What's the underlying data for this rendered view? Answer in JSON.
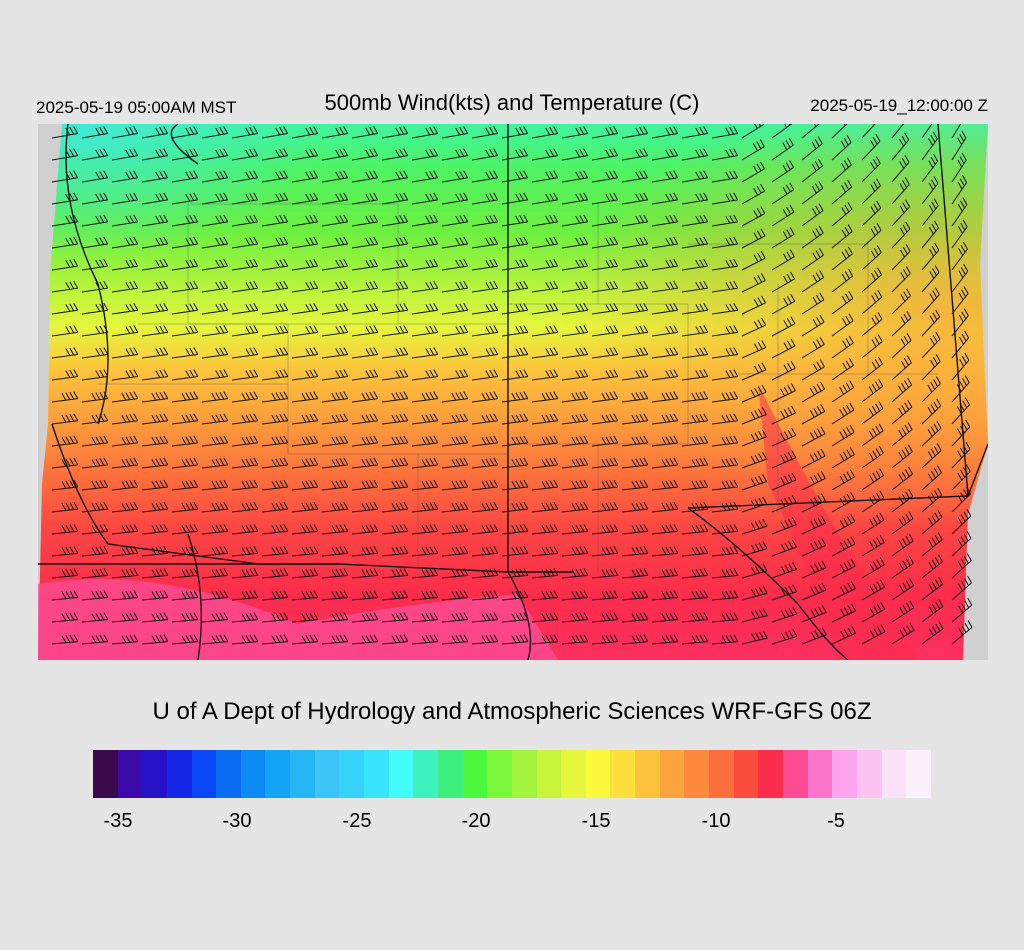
{
  "header": {
    "left_time": "2025-05-19 05:00AM MST",
    "title": "500mb Wind(kts) and Temperature (C)",
    "right_time": "2025-05-19_12:00:00 Z"
  },
  "credit": "U of A Dept of Hydrology and Atmospheric Sciences WRF-GFS 06Z",
  "colorbar": {
    "colors": [
      "#3a0a4a",
      "#3b0aa8",
      "#2812c8",
      "#1426e6",
      "#0b48f5",
      "#0a6cf3",
      "#0c8cf2",
      "#12a3f5",
      "#26b6f5",
      "#3cc6f7",
      "#35d3f9",
      "#38e4fb",
      "#44fbfa",
      "#3df2bf",
      "#3df07e",
      "#4cf83c",
      "#7cf83c",
      "#a2f43c",
      "#c8f43c",
      "#e6f63c",
      "#fcfa3c",
      "#fce03c",
      "#fcc43c",
      "#fca43c",
      "#fc8a3c",
      "#fc6e3c",
      "#fc4c3c",
      "#fc2c4c",
      "#fc4c94",
      "#fc74cc",
      "#fca4ec",
      "#fcc4f0",
      "#fce2f8",
      "#fcf0fc"
    ],
    "tick_labels": [
      "-35",
      "-30",
      "-25",
      "-20",
      "-15",
      "-10",
      "-5"
    ]
  }
}
